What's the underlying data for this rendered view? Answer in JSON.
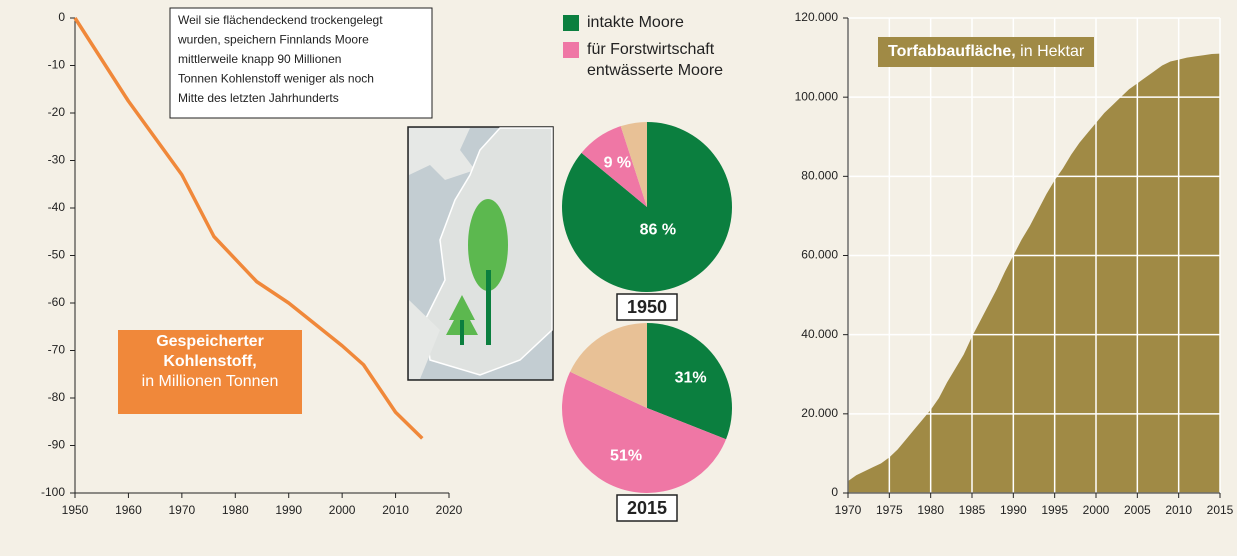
{
  "chart_data": [
    {
      "type": "line",
      "title": "Gespeicherter Kohlenstoff,",
      "subtitle": "in Millionen Tonnen",
      "annotation": [
        "Weil sie flächendeckend trockengelegt",
        "wurden, speichern Finnlands Moore",
        "mittlerweile knapp 90 Millionen",
        "Tonnen Kohlenstoff weniger als noch",
        "Mitte des letzten Jahrhunderts"
      ],
      "x": [
        1950,
        1960,
        1970,
        1976,
        1984,
        1990,
        2000,
        2004,
        2010,
        2015
      ],
      "values": [
        0,
        -17.5,
        -33,
        -46,
        -55.5,
        -60,
        -69,
        -73,
        -83,
        -88.5
      ],
      "color": "#f0883a",
      "xlim": [
        1950,
        2020
      ],
      "xticks": [
        1950,
        1960,
        1970,
        1980,
        1990,
        2000,
        2010,
        2020
      ],
      "ylim": [
        -100,
        0
      ],
      "yticks": [
        0,
        -10,
        -20,
        -30,
        -40,
        -50,
        -60,
        -70,
        -80,
        -90,
        -100
      ]
    },
    {
      "type": "pie",
      "categories": [
        "intakte Moore",
        "für Forstwirtschaft entwässerte Moore",
        null
      ],
      "colors": [
        "#0b7f3f",
        "#ef77a5",
        "#e8c196"
      ],
      "series": [
        {
          "name": "1950",
          "values": [
            86,
            9,
            5
          ],
          "value_labels": [
            "86 %",
            "9 %",
            null
          ]
        },
        {
          "name": "2015",
          "values": [
            31,
            51,
            18
          ],
          "value_labels": [
            "31%",
            "51%",
            null
          ]
        }
      ]
    },
    {
      "type": "area",
      "title": "Torfabbaufläche,",
      "subtitle": "in Hektar",
      "x": [
        1970,
        1971,
        1972,
        1973,
        1974,
        1975,
        1976,
        1977,
        1978,
        1979,
        1980,
        1981,
        1982,
        1983,
        1984,
        1985,
        1986,
        1987,
        1988,
        1989,
        1990,
        1991,
        1992,
        1993,
        1994,
        1995,
        1996,
        1997,
        1998,
        1999,
        2000,
        2001,
        2002,
        2003,
        2004,
        2005,
        2006,
        2007,
        2008,
        2009,
        2010,
        2011,
        2012,
        2013,
        2014,
        2015
      ],
      "values": [
        3000,
        4500,
        5500,
        6500,
        7500,
        9000,
        11000,
        13500,
        16000,
        18500,
        21000,
        24000,
        28000,
        31500,
        35000,
        39500,
        43500,
        47500,
        51500,
        56000,
        60000,
        64000,
        67500,
        71500,
        75500,
        79000,
        82000,
        85500,
        88500,
        91000,
        93500,
        96000,
        98000,
        100000,
        102000,
        103500,
        105000,
        106500,
        108000,
        109000,
        109500,
        110000,
        110300,
        110600,
        110900,
        111000
      ],
      "color": "#a08a45",
      "grid": true,
      "xlim": [
        1970,
        2015
      ],
      "xticks": [
        1970,
        1975,
        1980,
        1985,
        1990,
        1995,
        2000,
        2005,
        2010,
        2015
      ],
      "ylim": [
        0,
        120000
      ],
      "yticks": [
        0,
        {
          "value": 20000,
          "label": "20.000"
        },
        {
          "value": 40000,
          "label": "40.000"
        },
        {
          "value": 60000,
          "label": "60.000"
        },
        {
          "value": 80000,
          "label": "80.000"
        },
        {
          "value": 100000,
          "label": "100.000"
        },
        {
          "value": 120000,
          "label": "120.000"
        }
      ]
    }
  ]
}
